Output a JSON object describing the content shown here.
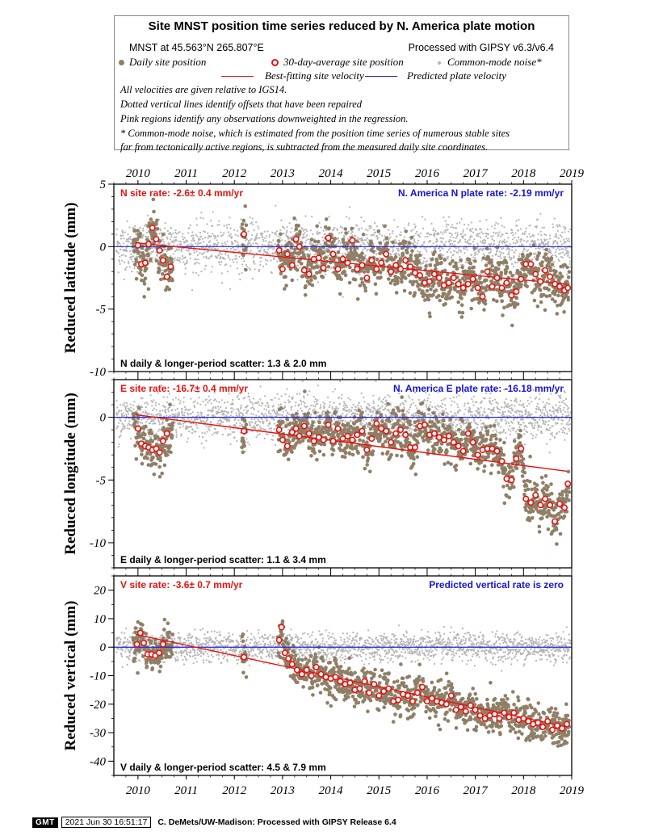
{
  "header": {
    "title": "Site MNST position time series reduced by N. America plate motion",
    "site_location": "MNST at 45.563°N 265.807°E",
    "processing": "Processed with GIPSY v6.3/v6.4",
    "legend": {
      "daily": "Daily site position",
      "avg30": "30-day-average site position",
      "cm": "Common-mode noise*",
      "best_fit": "Best-fitting site velocity",
      "plate": "Predicted plate velocity"
    },
    "notes": [
      "All velocities are given relative to IGS14.",
      "Dotted vertical lines identify offsets that have been repaired",
      "Pink regions identify any observations downweighted in the regression.",
      "* Common-mode noise, which is estimated from the position time series of numerous stable sites",
      "far from tectonically active regions, is subtracted from the measured daily site coordinates."
    ]
  },
  "footer": {
    "badge": "GMT",
    "timestamp": "2021 Jun 30 16:51:17",
    "credit": "C. DeMets/UW-Madison: Processed with GIPSY Release 6.4"
  },
  "colors": {
    "daily": "#8f7f67",
    "cm": "#b4b4b4",
    "fit": "#e8130f",
    "plate": "#2222e0",
    "rate_red": "#e8130f",
    "rate_blue": "#1515d8"
  },
  "chart_data": [
    {
      "type": "scatter",
      "ylabel": "Reduced latitude (mm)",
      "xlim": [
        2009.5,
        2019.0
      ],
      "ylim": [
        -10,
        5
      ],
      "x_ticks": [
        "2010",
        "2011",
        "2012",
        "2013",
        "2014",
        "2015",
        "2016",
        "2017",
        "2018",
        "2019"
      ],
      "y_ticks": [
        "5",
        "0",
        "-5",
        "-10"
      ],
      "site_rate": "N site rate:  -2.6± 0.4 mm/yr",
      "plate_rate": "N. America N plate rate: -2.19 mm/yr",
      "scatter_label": "N daily & longer-period scatter:   1.3 &   2.0 mm",
      "fit_line": [
        [
          2009.95,
          0.3
        ],
        [
          2018.9,
          -3.0
        ]
      ],
      "plate_line": 0,
      "avg30": [
        [
          2010.0,
          0.1
        ],
        [
          2010.07,
          -1.4
        ],
        [
          2010.15,
          -1.3
        ],
        [
          2010.22,
          0.2
        ],
        [
          2010.3,
          1.5
        ],
        [
          2010.38,
          0.6
        ],
        [
          2010.45,
          -0.3
        ],
        [
          2010.52,
          -1.1
        ],
        [
          2010.6,
          -2.4
        ],
        [
          2010.68,
          -1.6
        ],
        [
          2012.2,
          1.0
        ],
        [
          2012.93,
          -0.3
        ],
        [
          2013.0,
          -1.8
        ],
        [
          2013.1,
          -0.6
        ],
        [
          2013.2,
          -1.5
        ],
        [
          2013.28,
          0.6
        ],
        [
          2013.35,
          0.0
        ],
        [
          2013.45,
          -1.9
        ],
        [
          2013.55,
          -2.2
        ],
        [
          2013.65,
          -1.0
        ],
        [
          2013.75,
          -0.9
        ],
        [
          2013.85,
          -1.7
        ],
        [
          2013.95,
          0.7
        ],
        [
          2014.05,
          -0.6
        ],
        [
          2014.15,
          -1.8
        ],
        [
          2014.25,
          -1.0
        ],
        [
          2014.35,
          -1.3
        ],
        [
          2014.45,
          0.5
        ],
        [
          2014.55,
          -1.8
        ],
        [
          2014.65,
          -1.5
        ],
        [
          2014.75,
          -2.5
        ],
        [
          2014.85,
          -1.1
        ],
        [
          2014.95,
          -1.8
        ],
        [
          2015.05,
          -1.3
        ],
        [
          2015.15,
          -0.6
        ],
        [
          2015.25,
          -2.0
        ],
        [
          2015.35,
          -1.5
        ],
        [
          2015.45,
          -1.8
        ],
        [
          2015.55,
          -1.1
        ],
        [
          2015.65,
          -1.6
        ],
        [
          2015.75,
          -2.1
        ],
        [
          2015.85,
          -2.3
        ],
        [
          2015.95,
          -2.9
        ],
        [
          2016.05,
          -2.8
        ],
        [
          2016.15,
          -2.2
        ],
        [
          2016.25,
          -2.5
        ],
        [
          2016.35,
          -3.1
        ],
        [
          2016.45,
          -2.9
        ],
        [
          2016.55,
          -2.5
        ],
        [
          2016.65,
          -3.0
        ],
        [
          2016.75,
          -3.3
        ],
        [
          2016.85,
          -3.0
        ],
        [
          2016.95,
          -2.6
        ],
        [
          2017.05,
          -3.3
        ],
        [
          2017.15,
          -4.0
        ],
        [
          2017.25,
          -2.0
        ],
        [
          2017.35,
          -3.2
        ],
        [
          2017.45,
          -2.5
        ],
        [
          2017.55,
          -3.3
        ],
        [
          2017.65,
          -2.9
        ],
        [
          2017.75,
          -3.9
        ],
        [
          2017.85,
          -3.6
        ],
        [
          2017.95,
          -2.6
        ],
        [
          2018.05,
          -1.4
        ],
        [
          2018.15,
          -1.4
        ],
        [
          2018.25,
          -2.2
        ],
        [
          2018.35,
          -2.8
        ],
        [
          2018.45,
          -1.9
        ],
        [
          2018.55,
          -2.4
        ],
        [
          2018.65,
          -3.0
        ],
        [
          2018.75,
          -3.2
        ],
        [
          2018.85,
          -3.5
        ],
        [
          2018.92,
          -3.3
        ]
      ],
      "noise": {
        "daily": 0.95,
        "cm": 1.0
      }
    },
    {
      "type": "scatter",
      "ylabel": "Reduced longitude (mm)",
      "xlim": [
        2009.5,
        2019.0
      ],
      "ylim": [
        -12,
        3
      ],
      "x_ticks": [],
      "y_ticks": [
        "0",
        "-5",
        "-10"
      ],
      "site_rate": "E site rate:  -16.7± 0.4 mm/yr",
      "plate_rate": "N. America E plate rate: -16.18 mm/yr",
      "scatter_label": "E daily & longer-period scatter:   1.1 &   3.4 mm",
      "fit_line": [
        [
          2009.95,
          0.2
        ],
        [
          2018.9,
          -4.3
        ]
      ],
      "plate_line": 0,
      "avg30": [
        [
          2010.0,
          -0.9
        ],
        [
          2010.07,
          -2.1
        ],
        [
          2010.15,
          -2.3
        ],
        [
          2010.22,
          -2.4
        ],
        [
          2010.3,
          -2.6
        ],
        [
          2010.38,
          -2.5
        ],
        [
          2010.45,
          -2.8
        ],
        [
          2010.52,
          -1.9
        ],
        [
          2010.6,
          -1.3
        ],
        [
          2012.2,
          -1.1
        ],
        [
          2012.93,
          -1.0
        ],
        [
          2013.0,
          -1.8
        ],
        [
          2013.1,
          -2.3
        ],
        [
          2013.2,
          -1.2
        ],
        [
          2013.28,
          -0.9
        ],
        [
          2013.35,
          -1.5
        ],
        [
          2013.45,
          -0.7
        ],
        [
          2013.55,
          -1.3
        ],
        [
          2013.65,
          -1.9
        ],
        [
          2013.75,
          -1.6
        ],
        [
          2013.85,
          -1.8
        ],
        [
          2013.95,
          -0.6
        ],
        [
          2014.05,
          -1.9
        ],
        [
          2014.15,
          -0.9
        ],
        [
          2014.25,
          -1.7
        ],
        [
          2014.35,
          -1.5
        ],
        [
          2014.45,
          -1.8
        ],
        [
          2014.55,
          -1.4
        ],
        [
          2014.65,
          -1.1
        ],
        [
          2014.75,
          -2.6
        ],
        [
          2014.85,
          -1.7
        ],
        [
          2014.95,
          -0.5
        ],
        [
          2015.05,
          -0.9
        ],
        [
          2015.15,
          -1.1
        ],
        [
          2015.25,
          -2.0
        ],
        [
          2015.35,
          -1.3
        ],
        [
          2015.45,
          -1.0
        ],
        [
          2015.55,
          -1.4
        ],
        [
          2015.65,
          -2.4
        ],
        [
          2015.75,
          -2.4
        ],
        [
          2015.85,
          -0.7
        ],
        [
          2015.95,
          -0.6
        ],
        [
          2016.05,
          -1.4
        ],
        [
          2016.15,
          -1.3
        ],
        [
          2016.25,
          -1.6
        ],
        [
          2016.35,
          -1.8
        ],
        [
          2016.45,
          -1.5
        ],
        [
          2016.55,
          -2.0
        ],
        [
          2016.65,
          -2.3
        ],
        [
          2016.75,
          -2.7
        ],
        [
          2016.85,
          -1.3
        ],
        [
          2016.95,
          -2.0
        ],
        [
          2017.05,
          -3.0
        ],
        [
          2017.15,
          -2.6
        ],
        [
          2017.25,
          -2.5
        ],
        [
          2017.35,
          -2.5
        ],
        [
          2017.45,
          -2.7
        ],
        [
          2017.55,
          -3.5
        ],
        [
          2017.65,
          -4.9
        ],
        [
          2017.75,
          -5.0
        ],
        [
          2017.85,
          -3.3
        ],
        [
          2017.95,
          -2.5
        ],
        [
          2018.05,
          -6.5
        ],
        [
          2018.15,
          -6.8
        ],
        [
          2018.25,
          -6.2
        ],
        [
          2018.35,
          -7.0
        ],
        [
          2018.45,
          -6.5
        ],
        [
          2018.55,
          -7.0
        ],
        [
          2018.65,
          -8.3
        ],
        [
          2018.75,
          -6.9
        ],
        [
          2018.85,
          -7.2
        ],
        [
          2018.92,
          -5.3
        ]
      ],
      "noise": {
        "daily": 0.85,
        "cm": 0.9
      }
    },
    {
      "type": "scatter",
      "ylabel": "Reduced vertical (mm)",
      "xlim": [
        2009.5,
        2019.0
      ],
      "ylim": [
        -45,
        25
      ],
      "x_ticks": [
        "2010",
        "2011",
        "2012",
        "2013",
        "2014",
        "2015",
        "2016",
        "2017",
        "2018",
        "2019"
      ],
      "y_ticks": [
        "20",
        "10",
        "0",
        "-10",
        "-20",
        "-30",
        "-40"
      ],
      "site_rate": "V site rate:  -3.6± 0.7 mm/yr",
      "plate_rate": "Predicted vertical rate is zero",
      "scatter_label": "V daily & longer-period scatter:   4.5 &   7.9 mm",
      "fit_line": [
        [
          2009.95,
          4.5
        ],
        [
          2018.9,
          -28.0
        ]
      ],
      "plate_line": 0,
      "avg30": [
        [
          2009.98,
          1.0
        ],
        [
          2010.05,
          5.0
        ],
        [
          2010.12,
          1.5
        ],
        [
          2010.2,
          -2.5
        ],
        [
          2010.28,
          -2.5
        ],
        [
          2010.36,
          -3.0
        ],
        [
          2010.44,
          -2.0
        ],
        [
          2010.52,
          1.0
        ],
        [
          2012.2,
          -3.5
        ],
        [
          2012.93,
          2.5
        ],
        [
          2012.98,
          7.0
        ],
        [
          2013.05,
          -2.0
        ],
        [
          2013.12,
          -4.0
        ],
        [
          2013.2,
          -6.0
        ],
        [
          2013.3,
          -8.0
        ],
        [
          2013.4,
          -9.5
        ],
        [
          2013.5,
          -8.0
        ],
        [
          2013.6,
          -10.0
        ],
        [
          2013.7,
          -7.0
        ],
        [
          2013.8,
          -9.5
        ],
        [
          2013.9,
          -10.5
        ],
        [
          2014.0,
          -11.0
        ],
        [
          2014.1,
          -10.5
        ],
        [
          2014.2,
          -12.0
        ],
        [
          2014.3,
          -13.0
        ],
        [
          2014.4,
          -12.5
        ],
        [
          2014.5,
          -15.0
        ],
        [
          2014.6,
          -14.5
        ],
        [
          2014.7,
          -12.0
        ],
        [
          2014.8,
          -16.0
        ],
        [
          2014.9,
          -13.0
        ],
        [
          2015.0,
          -17.0
        ],
        [
          2015.1,
          -15.5
        ],
        [
          2015.2,
          -14.5
        ],
        [
          2015.3,
          -19.0
        ],
        [
          2015.4,
          -18.5
        ],
        [
          2015.5,
          -16.5
        ],
        [
          2015.6,
          -17.0
        ],
        [
          2015.7,
          -19.0
        ],
        [
          2015.8,
          -16.0
        ],
        [
          2015.9,
          -14.0
        ],
        [
          2016.0,
          -19.0
        ],
        [
          2016.1,
          -18.0
        ],
        [
          2016.2,
          -19.0
        ],
        [
          2016.3,
          -19.5
        ],
        [
          2016.4,
          -20.0
        ],
        [
          2016.5,
          -17.0
        ],
        [
          2016.6,
          -22.0
        ],
        [
          2016.7,
          -21.0
        ],
        [
          2016.8,
          -22.5
        ],
        [
          2016.9,
          -20.5
        ],
        [
          2017.0,
          -22.0
        ],
        [
          2017.1,
          -24.0
        ],
        [
          2017.2,
          -25.0
        ],
        [
          2017.3,
          -24.0
        ],
        [
          2017.4,
          -23.5
        ],
        [
          2017.5,
          -25.0
        ],
        [
          2017.6,
          -23.0
        ],
        [
          2017.7,
          -24.5
        ],
        [
          2017.8,
          -23.0
        ],
        [
          2017.9,
          -25.5
        ],
        [
          2018.0,
          -25.0
        ],
        [
          2018.1,
          -26.0
        ],
        [
          2018.2,
          -27.0
        ],
        [
          2018.3,
          -26.5
        ],
        [
          2018.4,
          -28.0
        ],
        [
          2018.5,
          -26.0
        ],
        [
          2018.6,
          -29.0
        ],
        [
          2018.7,
          -27.5
        ],
        [
          2018.8,
          -28.5
        ],
        [
          2018.9,
          -27.0
        ]
      ],
      "noise": {
        "daily": 3.2,
        "cm": 2.5
      }
    }
  ]
}
